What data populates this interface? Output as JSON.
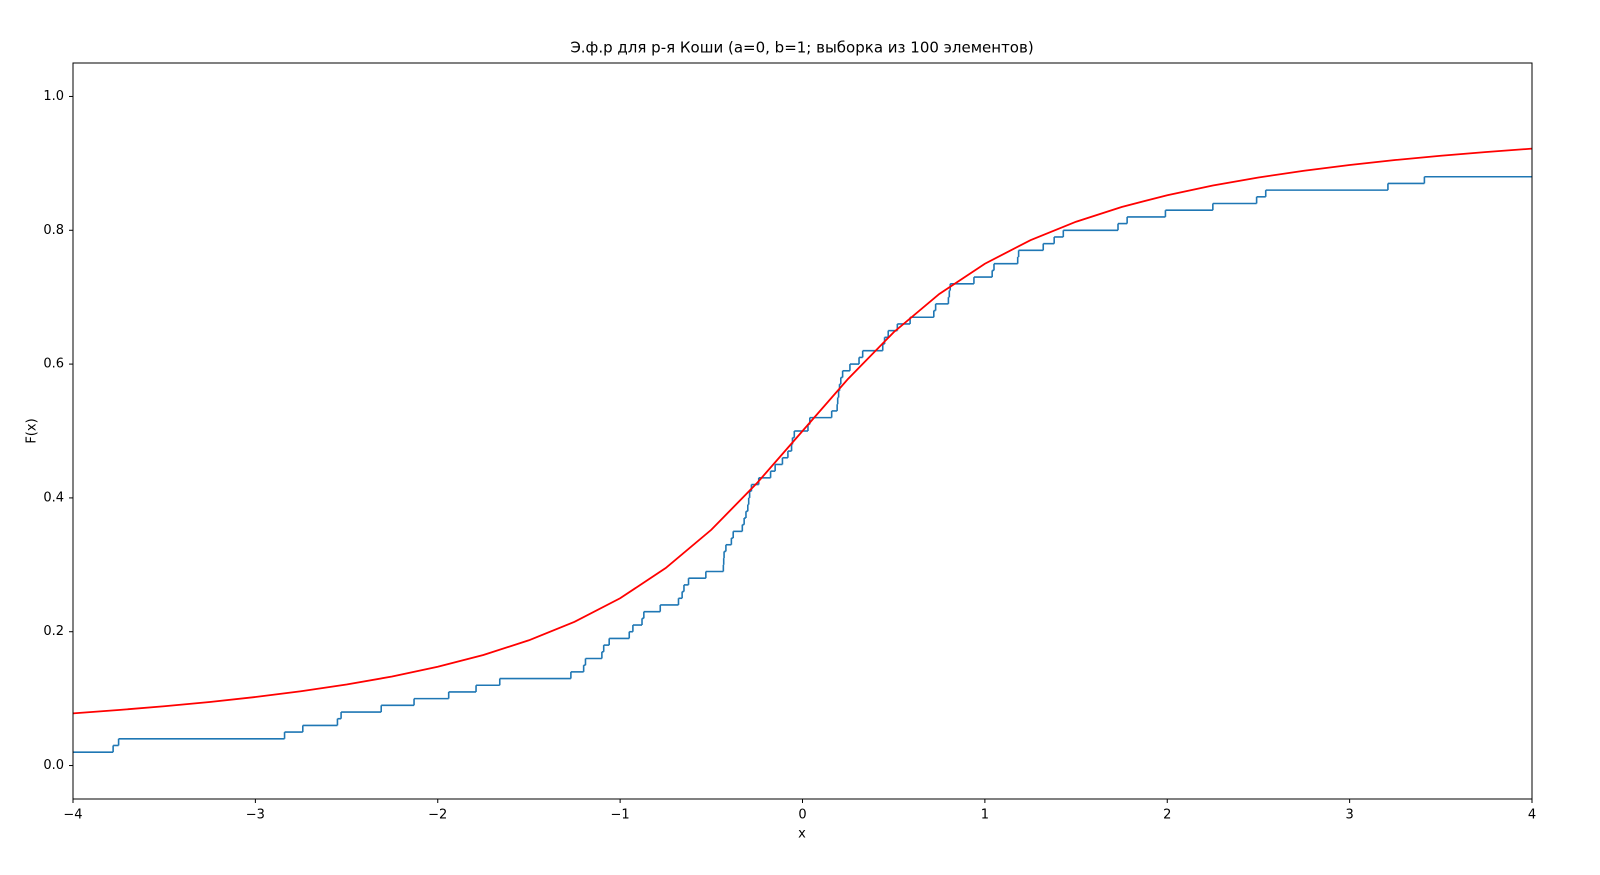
{
  "chart_data": {
    "type": "line",
    "title": "Э.ф.р для р-я Коши (a=0, b=1; выборка из 100 элементов)",
    "xlabel": "x",
    "ylabel": "F(x)",
    "xlim": [
      -4,
      4
    ],
    "ylim": [
      -0.05,
      1.05
    ],
    "xticks": [
      {
        "value": -4,
        "label": "−4"
      },
      {
        "value": -3,
        "label": "−3"
      },
      {
        "value": -2,
        "label": "−2"
      },
      {
        "value": -1,
        "label": "−1"
      },
      0,
      1,
      2,
      3,
      4
    ],
    "yticks": [
      {
        "value": 0,
        "label": "0.0"
      },
      {
        "value": 0.2,
        "label": "0.2"
      },
      {
        "value": 0.4,
        "label": "0.4"
      },
      {
        "value": 0.6,
        "label": "0.6"
      },
      {
        "value": 0.8,
        "label": "0.8"
      },
      {
        "value": 1,
        "label": "1.0"
      }
    ],
    "grid": false,
    "series": [
      {
        "color": "#1f77b4",
        "step": "post",
        "x": [
          -4,
          -3.78,
          -3.75,
          -2.84,
          -2.74,
          -2.55,
          -2.53,
          -2.31,
          -2.13,
          -1.94,
          -1.79,
          -1.66,
          -1.27,
          -1.2,
          -1.19,
          -1.1,
          -1.09,
          -1.06,
          -0.95,
          -0.93,
          -0.88,
          -0.87,
          -0.78,
          -0.68,
          -0.66,
          -0.65,
          -0.625,
          -0.53,
          -0.434,
          -0.432,
          -0.43,
          -0.42,
          -0.39,
          -0.38,
          -0.33,
          -0.32,
          -0.31,
          -0.3,
          -0.295,
          -0.29,
          -0.28,
          -0.24,
          -0.175,
          -0.15,
          -0.11,
          -0.08,
          -0.06,
          -0.055,
          -0.045,
          0.03,
          0.04,
          0.16,
          0.19,
          0.193,
          0.198,
          0.203,
          0.21,
          0.22,
          0.26,
          0.31,
          0.33,
          0.44,
          0.45,
          0.47,
          0.52,
          0.59,
          0.72,
          0.73,
          0.8,
          0.805,
          0.81,
          0.94,
          1.04,
          1.05,
          1.18,
          1.185,
          1.32,
          1.38,
          1.43,
          1.73,
          1.78,
          1.99,
          2.25,
          2.49,
          2.54,
          3.21,
          3.41,
          4
        ],
        "values": [
          0.02,
          0.03,
          0.04,
          0.05,
          0.06,
          0.07,
          0.08,
          0.09,
          0.1,
          0.11,
          0.12,
          0.13,
          0.14,
          0.15,
          0.16,
          0.17,
          0.18,
          0.19,
          0.2,
          0.21,
          0.22,
          0.23,
          0.24,
          0.25,
          0.26,
          0.27,
          0.28,
          0.29,
          0.3,
          0.31,
          0.32,
          0.33,
          0.34,
          0.35,
          0.36,
          0.37,
          0.38,
          0.39,
          0.4,
          0.41,
          0.42,
          0.43,
          0.44,
          0.45,
          0.46,
          0.47,
          0.48,
          0.49,
          0.5,
          0.51,
          0.52,
          0.53,
          0.54,
          0.55,
          0.56,
          0.57,
          0.58,
          0.59,
          0.6,
          0.61,
          0.62,
          0.63,
          0.64,
          0.65,
          0.66,
          0.67,
          0.68,
          0.69,
          0.7,
          0.71,
          0.72,
          0.73,
          0.74,
          0.75,
          0.76,
          0.77,
          0.78,
          0.79,
          0.8,
          0.81,
          0.82,
          0.83,
          0.84,
          0.85,
          0.86,
          0.87,
          0.88,
          0.88
        ]
      },
      {
        "color": "#ff0000",
        "x": [
          -4,
          -3.75,
          -3.5,
          -3.25,
          -3,
          -2.75,
          -2.5,
          -2.25,
          -2,
          -1.75,
          -1.5,
          -1.25,
          -1,
          -0.75,
          -0.5,
          -0.25,
          0,
          0.25,
          0.5,
          0.75,
          1,
          1.25,
          1.5,
          1.75,
          2,
          2.25,
          2.5,
          2.75,
          3,
          3.25,
          3.5,
          3.75,
          4
        ],
        "values": [
          0.078,
          0.083,
          0.0886,
          0.095,
          0.1024,
          0.111,
          0.1211,
          0.1331,
          0.1476,
          0.1652,
          0.1872,
          0.2148,
          0.25,
          0.2952,
          0.3524,
          0.422,
          0.5,
          0.578,
          0.6476,
          0.7048,
          0.75,
          0.7852,
          0.8128,
          0.8348,
          0.8524,
          0.8669,
          0.8789,
          0.889,
          0.8976,
          0.905,
          0.9114,
          0.917,
          0.922
        ]
      }
    ]
  }
}
